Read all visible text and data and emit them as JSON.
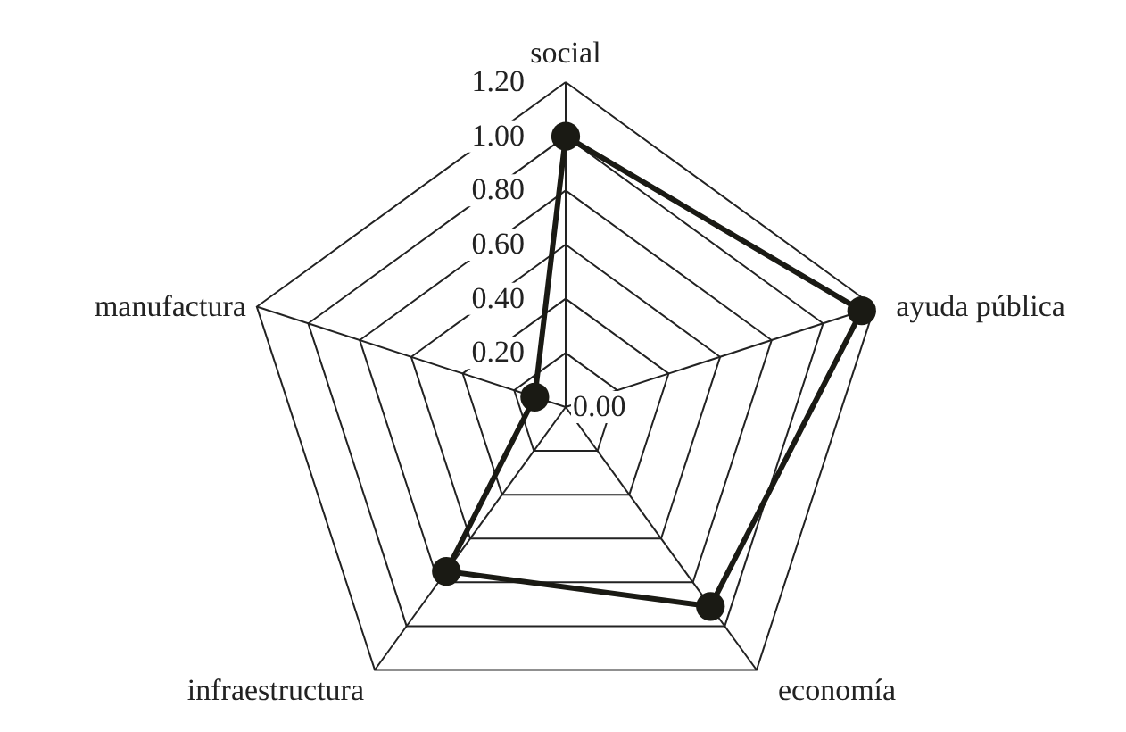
{
  "chart_data": {
    "type": "radar",
    "categories": [
      "social",
      "ayuda pública",
      "economía",
      "infraestructura",
      "manufactura"
    ],
    "series": [
      {
        "color": "#1a1a14",
        "values": [
          1.0,
          1.15,
          0.91,
          0.75,
          0.12
        ]
      }
    ],
    "ylim": [
      0,
      1.2
    ],
    "yticks": [
      {
        "value": 0,
        "label": "0.00"
      },
      {
        "value": 0.2,
        "label": "0.20"
      },
      {
        "value": 0.4,
        "label": "0.40"
      },
      {
        "value": 0.6,
        "label": "0.60"
      },
      {
        "value": 0.8,
        "label": "0.80"
      },
      {
        "value": 1.0,
        "label": "1.00"
      },
      {
        "value": 1.2,
        "label": "1.20"
      }
    ],
    "grid": true,
    "marker": "circle"
  }
}
